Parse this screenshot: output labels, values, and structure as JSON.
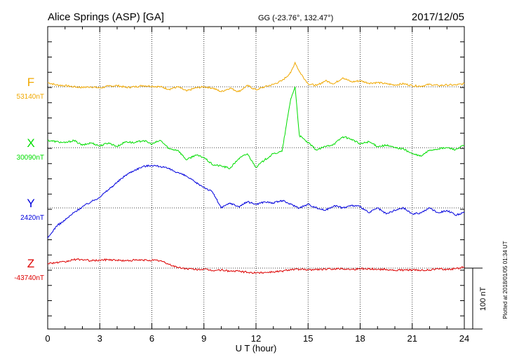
{
  "header": {
    "station": "Alice Springs (ASP)  [GA]",
    "coords": "GG (-23.76°, 132.47°)",
    "date": "2017/12/05"
  },
  "footer": {
    "plotted": "Plotted at 2018/01/05 01:34 UT"
  },
  "chart_data": {
    "type": "line",
    "title": "Alice Springs (ASP)  [GA]",
    "xlabel": "U T (hour)",
    "xlim": [
      0,
      24
    ],
    "xticks": [
      "0",
      "3",
      "6",
      "9",
      "12",
      "15",
      "18",
      "21",
      "24"
    ],
    "grid": true,
    "scale_bar": {
      "label": "100 nT",
      "value_nT": 100
    },
    "series": [
      {
        "name": "F",
        "baseline_label": "53140nT",
        "baseline_nT": 53140,
        "color": "#f0a800",
        "x": [
          0,
          0.5,
          1,
          1.5,
          2,
          2.5,
          3,
          3.5,
          4,
          4.5,
          5,
          5.5,
          6,
          6.5,
          7,
          7.5,
          8,
          8.5,
          9,
          9.5,
          10,
          10.5,
          11,
          11.5,
          12,
          12.5,
          13,
          13.5,
          14,
          14.25,
          14.5,
          15,
          15.5,
          16,
          16.5,
          17,
          17.5,
          18,
          18.5,
          19,
          19.5,
          20,
          20.5,
          21,
          21.5,
          22,
          22.5,
          23,
          23.5,
          24
        ],
        "values": [
          53147,
          53143,
          53142,
          53140,
          53139,
          53140,
          53138,
          53141,
          53142,
          53139,
          53140,
          53142,
          53141,
          53140,
          53136,
          53140,
          53133,
          53138,
          53140,
          53138,
          53132,
          53138,
          53132,
          53142,
          53135,
          53140,
          53144,
          53150,
          53163,
          53180,
          53165,
          53145,
          53142,
          53150,
          53145,
          53155,
          53148,
          53150,
          53146,
          53147,
          53145,
          53143,
          53145,
          53142,
          53141,
          53144,
          53142,
          53143,
          53143,
          53145
        ]
      },
      {
        "name": "X",
        "baseline_label": "30090nT",
        "baseline_nT": 30090,
        "color": "#00dd00",
        "x": [
          0,
          0.5,
          1,
          1.5,
          2,
          2.5,
          3,
          3.5,
          4,
          4.5,
          5,
          5.5,
          6,
          6.5,
          7,
          7.5,
          8,
          8.5,
          9,
          9.5,
          10,
          10.5,
          11,
          11.5,
          12,
          12.5,
          13,
          13.5,
          14,
          14.25,
          14.5,
          15,
          15.5,
          16,
          16.5,
          17,
          17.5,
          18,
          18.5,
          19,
          19.5,
          20,
          20.5,
          21,
          21.5,
          22,
          22.5,
          23,
          23.5,
          24
        ],
        "values": [
          30102,
          30100,
          30098,
          30102,
          30094,
          30098,
          30093,
          30098,
          30092,
          30100,
          30098,
          30102,
          30096,
          30102,
          30088,
          30086,
          30070,
          30078,
          30074,
          30062,
          30060,
          30056,
          30072,
          30080,
          30058,
          30070,
          30080,
          30084,
          30170,
          30190,
          30110,
          30098,
          30086,
          30092,
          30096,
          30108,
          30104,
          30096,
          30100,
          30092,
          30094,
          30090,
          30088,
          30080,
          30076,
          30086,
          30088,
          30090,
          30087,
          30094
        ]
      },
      {
        "name": "Y",
        "baseline_label": "2420nT",
        "baseline_nT": 2420,
        "color": "#0000dd",
        "x": [
          0,
          0.25,
          0.5,
          1,
          1.5,
          2,
          2.5,
          3,
          3.5,
          4,
          4.5,
          5,
          5.5,
          6,
          6.5,
          7,
          7.5,
          8,
          8.5,
          9,
          9.5,
          10,
          10.5,
          11,
          11.5,
          12,
          12.5,
          13,
          13.5,
          14,
          14.5,
          15,
          15.5,
          16,
          16.5,
          17,
          17.5,
          18,
          18.5,
          19,
          19.5,
          20,
          20.5,
          21,
          21.5,
          22,
          22.5,
          23,
          23.5,
          24
        ],
        "values": [
          2370,
          2380,
          2390,
          2400,
          2412,
          2422,
          2430,
          2438,
          2450,
          2462,
          2474,
          2482,
          2488,
          2490,
          2488,
          2484,
          2478,
          2472,
          2462,
          2454,
          2446,
          2420,
          2428,
          2422,
          2430,
          2426,
          2430,
          2428,
          2432,
          2426,
          2420,
          2426,
          2420,
          2416,
          2424,
          2420,
          2424,
          2422,
          2412,
          2420,
          2410,
          2416,
          2420,
          2410,
          2412,
          2420,
          2412,
          2416,
          2408,
          2412
        ]
      },
      {
        "name": "Z",
        "baseline_label": "-43740nT",
        "baseline_nT": -43740,
        "color": "#dd0000",
        "x": [
          0,
          0.5,
          1,
          1.5,
          2,
          2.5,
          3,
          3.5,
          4,
          4.5,
          5,
          5.5,
          6,
          6.5,
          7,
          7.5,
          8,
          8.5,
          9,
          9.5,
          10,
          10.5,
          11,
          11.5,
          12,
          12.5,
          13,
          13.5,
          14,
          14.5,
          15,
          15.5,
          16,
          16.5,
          17,
          17.5,
          18,
          18.5,
          19,
          19.5,
          20,
          20.5,
          21,
          21.5,
          22,
          22.5,
          23,
          23.5,
          24
        ],
        "values": [
          -43732,
          -43731,
          -43730,
          -43726,
          -43726,
          -43728,
          -43727,
          -43726,
          -43727,
          -43728,
          -43727,
          -43727,
          -43727,
          -43728,
          -43734,
          -43739,
          -43741,
          -43742,
          -43742,
          -43744,
          -43743,
          -43745,
          -43745,
          -43747,
          -43748,
          -43747,
          -43746,
          -43745,
          -43742,
          -43742,
          -43743,
          -43742,
          -43742,
          -43741,
          -43741,
          -43742,
          -43741,
          -43741,
          -43742,
          -43742,
          -43744,
          -43743,
          -43743,
          -43744,
          -43743,
          -43741,
          -43742,
          -43741,
          -43738
        ]
      }
    ]
  }
}
